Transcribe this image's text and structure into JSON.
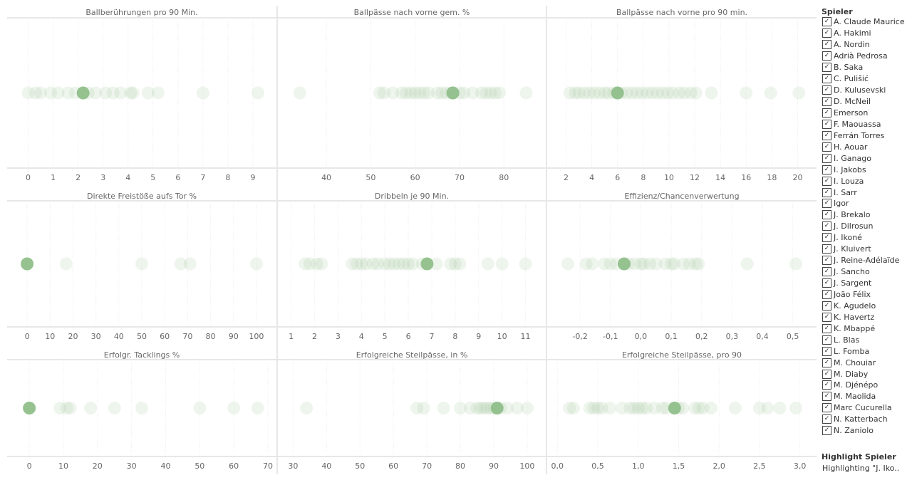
{
  "colors": {
    "dot": "#9fc99b",
    "dot_highlight": "#8fbf8a",
    "grid": "#ececec",
    "axis": "#cfcfcf",
    "label": "#666"
  },
  "chart_data": [
    {
      "type": "scatter",
      "title": "Ballberührungen pro 90 Min.",
      "xlim": [
        -0.5,
        9.6
      ],
      "ticks": [
        0,
        1,
        2,
        3,
        4,
        5,
        6,
        7,
        8,
        9
      ],
      "values": [
        0,
        0.3,
        0.5,
        0.9,
        1.2,
        1.6,
        1.9,
        2.4,
        2.7,
        3.1,
        3.4,
        3.7,
        4.1,
        4.2,
        4.8,
        5.2,
        7.0,
        9.2
      ],
      "highlight": 2.2
    },
    {
      "type": "scatter",
      "title": "Ballpässe nach vorne gem. %",
      "xlim": [
        31,
        87.5
      ],
      "ticks": [
        40,
        50,
        60,
        70,
        80
      ],
      "values": [
        34,
        52,
        53,
        55,
        57,
        58,
        59,
        60,
        61,
        62,
        63,
        65,
        66,
        67,
        68,
        70,
        71,
        73,
        75,
        76,
        77,
        78,
        79,
        85
      ],
      "highlight": 68.5
    },
    {
      "type": "scatter",
      "title": "Ballpässe nach vorne pro 90 min.",
      "xlim": [
        1.2,
        20.8
      ],
      "ticks": [
        2,
        4,
        6,
        8,
        10,
        12,
        14,
        16,
        18,
        20
      ],
      "values": [
        2.3,
        2.7,
        3.0,
        3.4,
        3.8,
        4.2,
        4.6,
        5.0,
        5.3,
        5.7,
        6.3,
        6.7,
        7.1,
        7.5,
        7.9,
        8.3,
        8.7,
        9.1,
        9.5,
        9.9,
        10.3,
        10.8,
        11.2,
        11.7,
        12.1,
        13.3,
        16,
        17.9,
        20.1
      ],
      "highlight": 6.0
    },
    {
      "type": "scatter",
      "title": "Direkte Freistöße aufs Tor %",
      "xlim": [
        -5,
        105
      ],
      "ticks": [
        0,
        10,
        20,
        30,
        40,
        50,
        60,
        70,
        80,
        90,
        100
      ],
      "values": [
        0,
        17,
        50,
        67,
        71,
        100
      ],
      "highlight": 0
    },
    {
      "type": "scatter",
      "title": "Dribbeln je 90 Min.",
      "xlim": [
        0.8,
        11.5
      ],
      "ticks": [
        1,
        2,
        3,
        4,
        5,
        6,
        7,
        8,
        9,
        10,
        11
      ],
      "values": [
        1.6,
        1.8,
        2.1,
        2.3,
        3.6,
        3.8,
        4.0,
        4.2,
        4.5,
        4.7,
        5.0,
        5.2,
        5.4,
        5.6,
        5.8,
        6.0,
        6.2,
        6.6,
        7.2,
        7.8,
        8.0,
        8.2,
        9.4,
        10.0,
        11.0
      ],
      "highlight": 6.8
    },
    {
      "type": "scatter",
      "title": "Effizienz/Chancenverwertung",
      "xlim": [
        -0.28,
        0.55
      ],
      "ticks": [
        "-0,2",
        "-0,1",
        "0,0",
        "0,1",
        "0,2",
        "0,3",
        "0,4",
        "0,5"
      ],
      "tick_values": [
        -0.2,
        -0.1,
        0,
        0.1,
        0.2,
        0.3,
        0.4,
        0.5
      ],
      "values": [
        -0.24,
        -0.18,
        -0.16,
        -0.12,
        -0.1,
        -0.08,
        -0.04,
        -0.02,
        0,
        0.01,
        0.03,
        0.05,
        0.08,
        0.1,
        0.11,
        0.14,
        0.16,
        0.18,
        0.19,
        0.35,
        0.51
      ],
      "highlight": -0.055
    },
    {
      "type": "scatter",
      "title": "Erfolgr. Tacklings %",
      "xlim": [
        -4,
        70
      ],
      "ticks": [
        0,
        10,
        20,
        30,
        40,
        50,
        60,
        70
      ],
      "values": [
        0,
        9,
        11,
        12,
        18,
        25,
        33,
        50,
        60,
        67
      ],
      "highlight": 0
    },
    {
      "type": "scatter",
      "title": "Erfolgreiche Steilpässe, in %",
      "xlim": [
        28,
        103
      ],
      "ticks": [
        30,
        40,
        50,
        60,
        70,
        80,
        90,
        100
      ],
      "values": [
        34,
        67,
        69,
        75,
        80,
        83,
        85,
        86,
        87,
        88,
        89,
        90,
        92,
        94,
        97,
        100
      ],
      "highlight": 91
    },
    {
      "type": "scatter",
      "title": "Erfolgreiche Steilpässe, pro 90",
      "xlim": [
        -0.02,
        3.1
      ],
      "ticks": [
        "0,0",
        "0,5",
        "1,0",
        "1,5",
        "2,0",
        "2,5",
        "3,0"
      ],
      "tick_values": [
        0,
        0.5,
        1,
        1.5,
        2,
        2.5,
        3
      ],
      "values": [
        0.15,
        0.2,
        0.4,
        0.45,
        0.5,
        0.55,
        0.65,
        0.8,
        0.9,
        0.95,
        1.0,
        1.05,
        1.1,
        1.2,
        1.3,
        1.35,
        1.5,
        1.55,
        1.7,
        1.75,
        1.8,
        1.9,
        2.2,
        2.5,
        2.6,
        2.75,
        2.95
      ],
      "highlight": 1.45
    }
  ],
  "legend": {
    "title": "Spieler",
    "items": [
      "A. Claude Maurice",
      "A. Hakimi",
      "A. Nordin",
      "Adrià Pedrosa",
      "B. Saka",
      "C. Pulišić",
      "D. Kulusevski",
      "D. McNeil",
      "Emerson",
      "F. Maouassa",
      "Ferrán Torres",
      "H. Aouar",
      "I. Ganago",
      "I. Jakobs",
      "I. Louza",
      "I. Sarr",
      "Igor",
      "J. Brekalo",
      "J. Dilrosun",
      "J. Ikoné",
      "J. Kluivert",
      "J. Reine-Adélaïde",
      "J. Sancho",
      "J. Sargent",
      "João Félix",
      "K. Agudelo",
      "K. Havertz",
      "K. Mbappé",
      "L. Blas",
      "L. Fomba",
      "M. Chouiar",
      "M. Diaby",
      "M. Djénépo",
      "M. Maolida",
      "Marc Cucurella",
      "N. Katterbach",
      "N. Zaniolo"
    ],
    "check": "✓"
  },
  "highlight": {
    "title": "Highlight Spieler",
    "value": "Highlighting \"J. Iko.."
  }
}
